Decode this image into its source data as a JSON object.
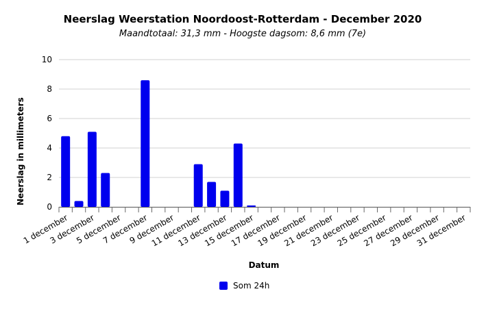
{
  "chart_data": {
    "type": "bar",
    "title": "Neerslag Weerstation Noordoost-Rotterdam - December 2020",
    "subtitle": "Maandtotaal: 31,3 mm - Hoogste dagsom: 8,6 mm (7e)",
    "x_label": "Datum",
    "y_label": "Neerslag in millimeters",
    "categories": [
      "1 december",
      null,
      "3 december",
      null,
      "5 december",
      null,
      "7 december",
      null,
      "9 december",
      null,
      "11 december",
      null,
      "13 december",
      null,
      "15 december",
      null,
      "17 december",
      null,
      "19 december",
      null,
      "21 december",
      null,
      "23 december",
      null,
      "25 december",
      null,
      "27 december",
      null,
      "29 december",
      null,
      "31 december"
    ],
    "series": [
      {
        "name": "Som 24h",
        "color": "#0000ee",
        "values": [
          4.8,
          0.4,
          5.1,
          2.3,
          0,
          0,
          8.6,
          0,
          0,
          0,
          2.9,
          1.7,
          1.1,
          4.3,
          0.1,
          0,
          0,
          0,
          0,
          0,
          0,
          0,
          0,
          0,
          0,
          0,
          0,
          0,
          0,
          0,
          0
        ]
      }
    ],
    "ylim": [
      0,
      10
    ],
    "yticks": [
      0,
      2,
      4,
      6,
      8,
      10
    ],
    "grid": true
  }
}
